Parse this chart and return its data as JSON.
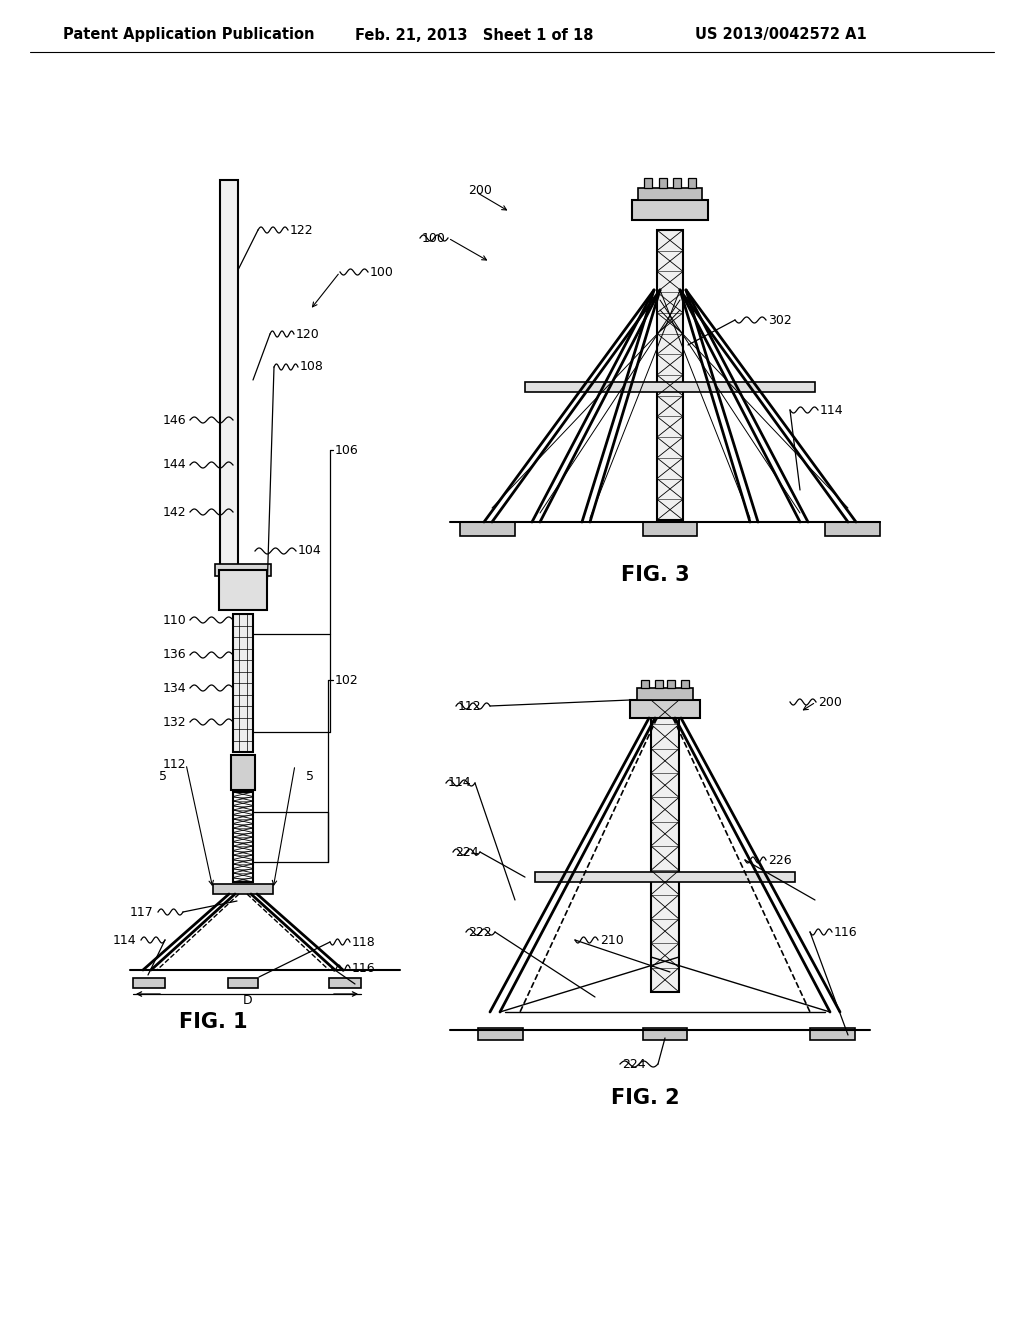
{
  "bg_color": "#ffffff",
  "header_left": "Patent Application Publication",
  "header_mid": "Feb. 21, 2013   Sheet 1 of 18",
  "header_right": "US 2013/0042572 A1",
  "header_fontsize": 10.5,
  "fig1_label": "FIG. 1",
  "fig2_label": "FIG. 2",
  "fig3_label": "FIG. 3",
  "fig_label_fontsize": 15
}
